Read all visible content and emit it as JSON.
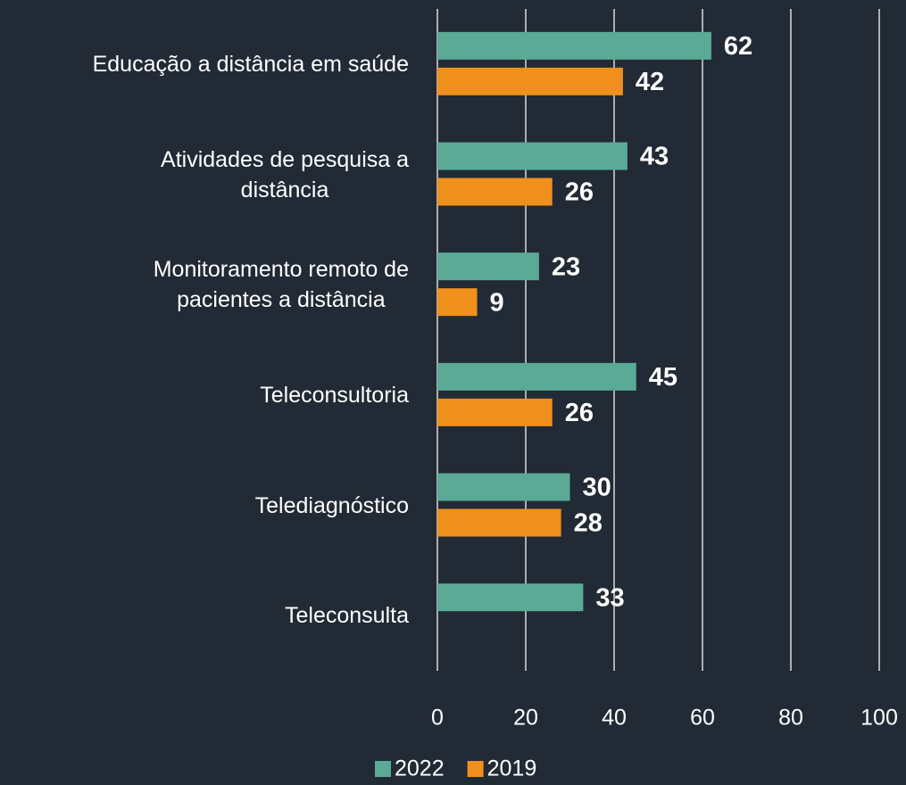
{
  "chart_data": {
    "type": "bar",
    "orientation": "horizontal",
    "categories": [
      "Educação a distância em saúde",
      "Atividades de pesquisa a\ndistância",
      "Monitoramento remoto de\npacientes a distância",
      "Teleconsultoria",
      "Telediagnóstico",
      "Teleconsulta"
    ],
    "series": [
      {
        "name": "2022",
        "color": "#5aaa96",
        "values": [
          62,
          43,
          23,
          45,
          30,
          33
        ]
      },
      {
        "name": "2019",
        "color": "#f0901c",
        "values": [
          42,
          26,
          9,
          26,
          28,
          null
        ]
      }
    ],
    "xlim": [
      0,
      100
    ],
    "xticks": [
      0,
      20,
      40,
      60,
      80,
      100
    ],
    "grid": true,
    "legend": "bottom"
  }
}
